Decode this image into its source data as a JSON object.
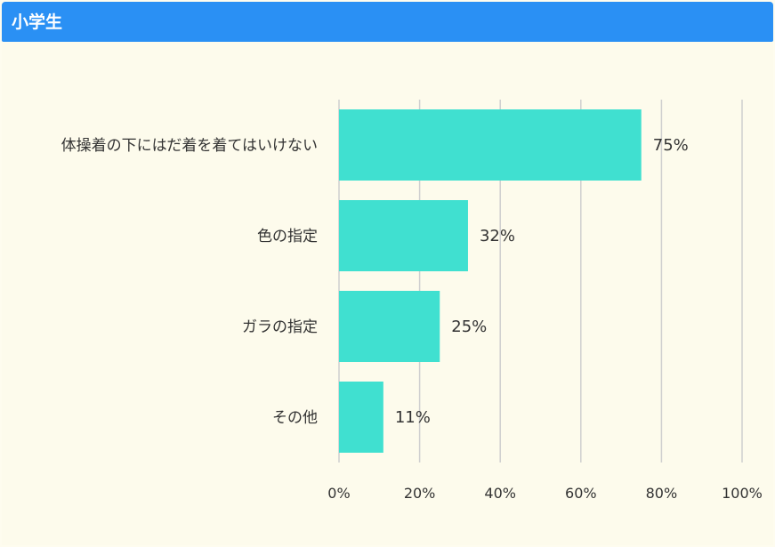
{
  "header": {
    "title": "小学生"
  },
  "colors": {
    "header": "#2a90f4",
    "bar": "#40e0d0",
    "grid": "#cfcfcf",
    "background": "#fdfbec"
  },
  "chart_data": {
    "type": "bar",
    "orientation": "horizontal",
    "categories": [
      "体操着の下にはだ着を着てはいけない",
      "色の指定",
      "ガラの指定",
      "その他"
    ],
    "values": [
      75,
      32,
      25,
      11
    ],
    "value_labels": [
      "75%",
      "32%",
      "25%",
      "11%"
    ],
    "xlim": [
      0,
      100
    ],
    "xticks": [
      "0%",
      "20%",
      "40%",
      "60%",
      "80%",
      "100%"
    ],
    "grid": true,
    "unit": "%"
  }
}
